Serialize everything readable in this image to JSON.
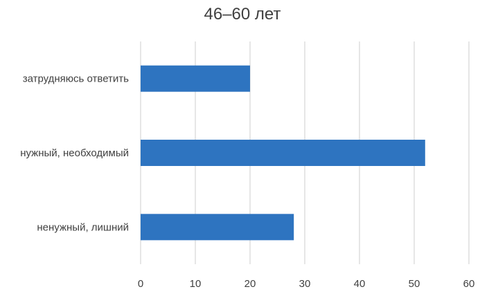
{
  "chart_data": {
    "type": "bar",
    "orientation": "horizontal",
    "title": "46–60 лет",
    "categories": [
      "затрудняюсь ответить",
      "нужный, необходимый",
      "ненужный, лишний"
    ],
    "values": [
      20,
      52,
      28
    ],
    "xlim": [
      0,
      60
    ],
    "x_ticks": [
      0,
      10,
      20,
      30,
      40,
      50,
      60
    ],
    "grid": "vertical",
    "legend": "none",
    "colors": {
      "bar": "#2E74C0",
      "grid": "#D9D9D9",
      "text": "#404040"
    }
  }
}
